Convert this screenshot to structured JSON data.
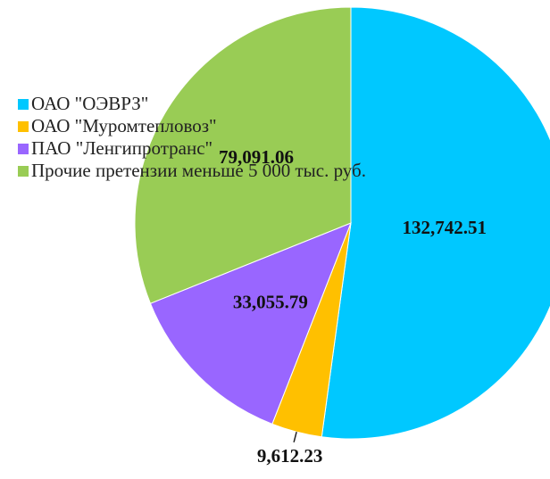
{
  "chart_data": {
    "type": "pie",
    "categories": [
      "ОАО \"ОЭВРЗ\"",
      "ОАО \"Муромтепловоз\"",
      "ПАО \"Ленгипротранс\"",
      "Прочие претензии меньше 5 000 тыс. руб."
    ],
    "values": [
      132742.51,
      9612.23,
      33055.79,
      79091.06
    ],
    "value_labels": [
      "132,742.51",
      "9,612.23",
      "33,055.79",
      "79,091.06"
    ],
    "colors": [
      "#00c8ff",
      "#ffc000",
      "#9966ff",
      "#99cc55"
    ],
    "legend": "left"
  }
}
